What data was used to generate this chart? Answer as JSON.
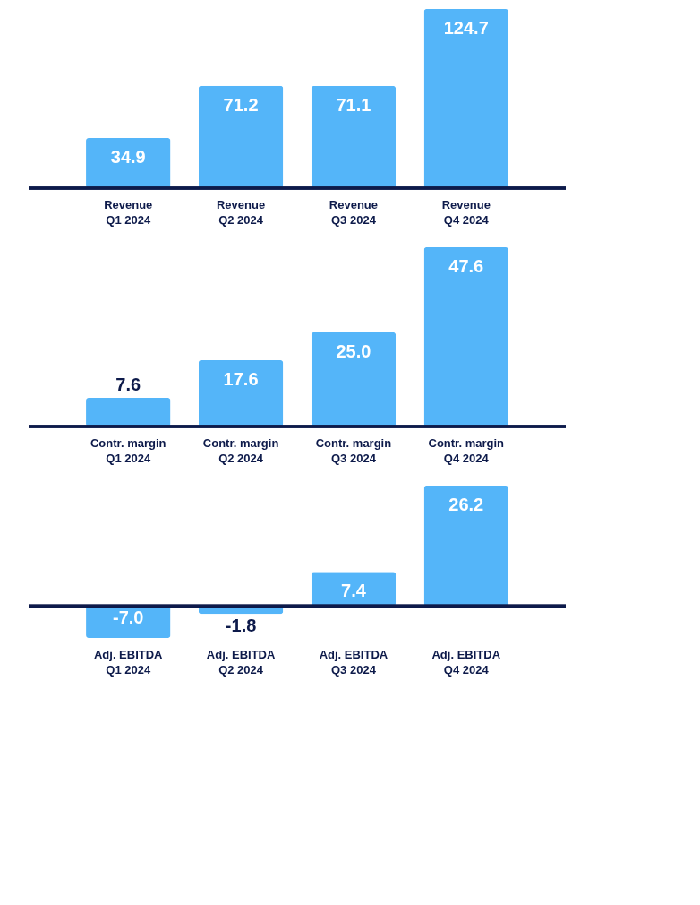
{
  "chart_data": [
    {
      "type": "bar",
      "categories": [
        "Revenue\nQ1 2024",
        "Revenue\nQ2 2024",
        "Revenue\nQ3 2024",
        "Revenue\nQ4 2024"
      ],
      "values": [
        34.9,
        71.2,
        71.1,
        124.7
      ],
      "value_labels": [
        "34.9",
        "71.2",
        "71.1",
        "124.7"
      ],
      "color": "#54b5f9"
    },
    {
      "type": "bar",
      "categories": [
        "Contr. margin\nQ1 2024",
        "Contr. margin\nQ2 2024",
        "Contr. margin\nQ3 2024",
        "Contr. margin\nQ4 2024"
      ],
      "values": [
        7.6,
        17.6,
        25.0,
        47.6
      ],
      "value_labels": [
        "7.6",
        "17.6",
        "25.0",
        "47.6"
      ],
      "color": "#54b5f9"
    },
    {
      "type": "bar",
      "categories": [
        "Adj. EBITDA\nQ1 2024",
        "Adj. EBITDA\nQ2 2024",
        "Adj. EBITDA\nQ3 2024",
        "Adj. EBITDA\nQ4 2024"
      ],
      "values": [
        -7.0,
        -1.8,
        7.4,
        26.2
      ],
      "value_labels": [
        "-7.0",
        "-1.8",
        "7.4",
        "26.2"
      ],
      "color": "#54b5f9"
    }
  ]
}
